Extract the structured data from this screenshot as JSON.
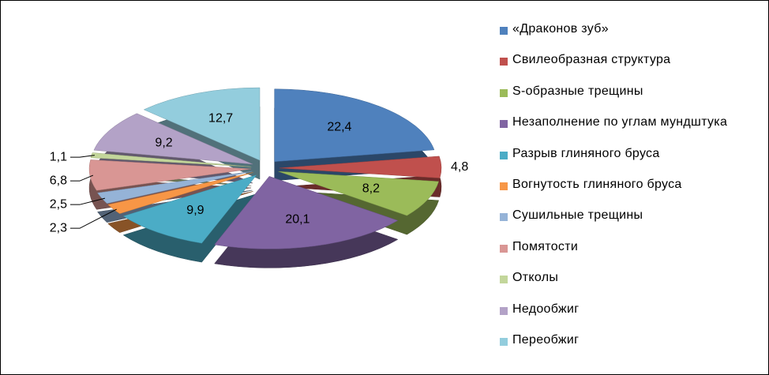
{
  "chart_data": {
    "type": "pie",
    "categories": [
      "«Драконов зуб»",
      "Свилеобразная структура",
      "S-образные трещины",
      "Незаполнение по углам мундштука",
      "Разрыв глиняного бруса",
      "Вогнутость глиняного бруса",
      "Сушильные трещины",
      "Помятости",
      "Отколы",
      "Недообжиг",
      "Переобжиг"
    ],
    "values": [
      22.4,
      4.8,
      8.2,
      20.1,
      9.9,
      2.3,
      2.5,
      6.8,
      1.1,
      9.2,
      12.7
    ],
    "value_labels": [
      "22,4",
      "4,8",
      "8,2",
      "20,1",
      "9,9",
      "2,3",
      "2,5",
      "6,8",
      "1,1",
      "9,2",
      "12,7"
    ],
    "colors": [
      "#4F81BD",
      "#C0504D",
      "#9BBB59",
      "#8064A2",
      "#4BACC6",
      "#F79646",
      "#95B3D7",
      "#D99694",
      "#C3D69B",
      "#B3A2C7",
      "#93CDDD"
    ],
    "legend": "right"
  }
}
